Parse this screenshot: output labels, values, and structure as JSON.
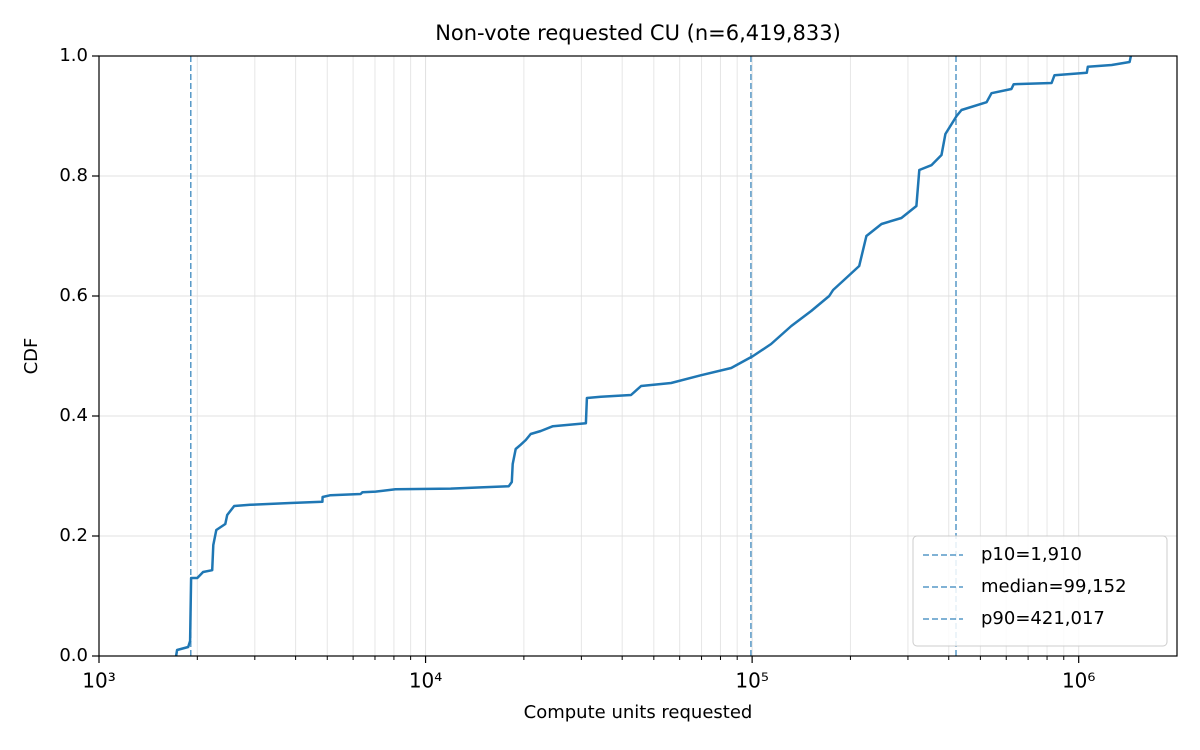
{
  "chart_data": {
    "type": "line",
    "title": "Non-vote requested CU (n=6,419,833)",
    "x_label": "Compute units requested",
    "y_label": "CDF",
    "log_x": true,
    "grid": true,
    "legend": "lower right",
    "xlim": [
      1000,
      2000000
    ],
    "xticks": [
      {
        "value": 1000,
        "label": "10³"
      },
      {
        "value": 10000,
        "label": "10⁴"
      },
      {
        "value": 100000,
        "label": "10⁵"
      },
      {
        "value": 1000000,
        "label": "10⁶"
      }
    ],
    "xminor_ticks": [
      2000,
      3000,
      4000,
      5000,
      6000,
      7000,
      8000,
      9000,
      20000,
      30000,
      40000,
      50000,
      60000,
      70000,
      80000,
      90000,
      200000,
      300000,
      400000,
      500000,
      600000,
      700000,
      800000,
      900000
    ],
    "ylim": [
      0,
      1
    ],
    "yticks": [
      {
        "value": 0,
        "label": "0.0"
      },
      0.2,
      0.4,
      0.6,
      0.8,
      {
        "value": 1,
        "label": "1.0"
      }
    ],
    "x": [
      1722,
      1735,
      1875,
      1901,
      1915,
      2000,
      2084,
      2222,
      2239,
      2286,
      2436,
      2470,
      2594,
      2904,
      3855,
      4830,
      4840,
      5115,
      6324,
      6412,
      7031,
      8091,
      11940,
      14750,
      17990,
      18370,
      18490,
      18880,
      19550,
      20280,
      20990,
      22540,
      24550,
      30970,
      31190,
      34430,
      42560,
      45710,
      56490,
      69820,
      86300,
      100700,
      114300,
      131800,
      151700,
      172200,
      177000,
      194100,
      212800,
      223900,
      248900,
      286400,
      318400,
      325100,
      354000,
      380200,
      390800,
      422700,
      437500,
      522400,
      540800,
      622300,
      632400,
      826000,
      843300,
      1059000,
      1066000,
      1262000,
      1432000,
      1445000
    ],
    "series": [
      {
        "color": "#1f77b4",
        "values": [
          0,
          0.01,
          0.015,
          0.025,
          0.13,
          0.13,
          0.14,
          0.143,
          0.185,
          0.21,
          0.22,
          0.235,
          0.25,
          0.252,
          0.255,
          0.257,
          0.265,
          0.268,
          0.27,
          0.273,
          0.274,
          0.278,
          0.279,
          0.281,
          0.283,
          0.29,
          0.32,
          0.345,
          0.352,
          0.36,
          0.37,
          0.375,
          0.383,
          0.388,
          0.43,
          0.432,
          0.435,
          0.45,
          0.455,
          0.468,
          0.48,
          0.5,
          0.52,
          0.55,
          0.575,
          0.6,
          0.61,
          0.63,
          0.65,
          0.7,
          0.72,
          0.73,
          0.75,
          0.81,
          0.818,
          0.835,
          0.87,
          0.9,
          0.91,
          0.923,
          0.938,
          0.945,
          0.953,
          0.955,
          0.968,
          0.972,
          0.982,
          0.985,
          0.99,
          1.0
        ]
      }
    ],
    "vline_color": "#1f77b4",
    "vlines": [
      {
        "name": "p10=1,910",
        "value": 1910
      },
      {
        "name": "median=99,152",
        "value": 99152
      },
      {
        "name": "p90=421,017",
        "value": 421017
      }
    ]
  }
}
